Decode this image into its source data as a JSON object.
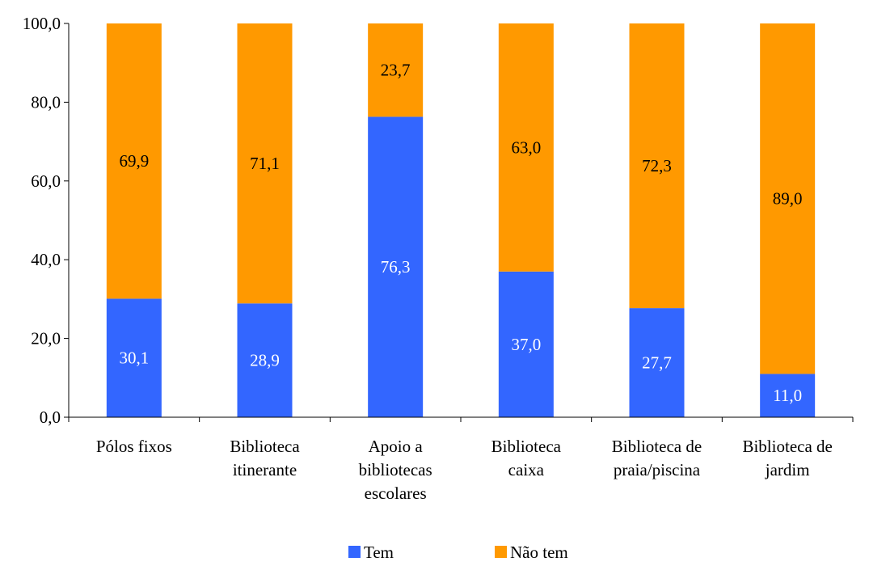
{
  "chart_data": {
    "type": "bar",
    "stacked": true,
    "categories": [
      [
        "Pólos fixos"
      ],
      [
        "Biblioteca",
        "itinerante"
      ],
      [
        "Apoio a",
        "bibliotecas",
        "escolares"
      ],
      [
        "Biblioteca",
        "caixa"
      ],
      [
        "Biblioteca de",
        "praia/piscina"
      ],
      [
        "Biblioteca de",
        "jardim"
      ]
    ],
    "series": [
      {
        "name": "Tem",
        "color": "#3366FF",
        "label_color": "#FFFFFF",
        "values": [
          30.1,
          28.9,
          76.3,
          37.0,
          27.7,
          11.0
        ],
        "labels": [
          "30,1",
          "28,9",
          "76,3",
          "37,0",
          "27,7",
          "11,0"
        ]
      },
      {
        "name": "Não tem",
        "color": "#FF9900",
        "label_color": "#000000",
        "values": [
          69.9,
          71.1,
          23.7,
          63.0,
          72.3,
          89.0
        ],
        "labels": [
          "69,9",
          "71,1",
          "23,7",
          "63,0",
          "72,3",
          "89,0"
        ]
      }
    ],
    "y_ticks": [
      "0,0",
      "20,0",
      "40,0",
      "60,0",
      "80,0",
      "100,0"
    ],
    "y_tick_values": [
      0,
      20,
      40,
      60,
      80,
      100
    ],
    "ylim": [
      0,
      100
    ],
    "grid": false,
    "legend_position": "bottom"
  }
}
